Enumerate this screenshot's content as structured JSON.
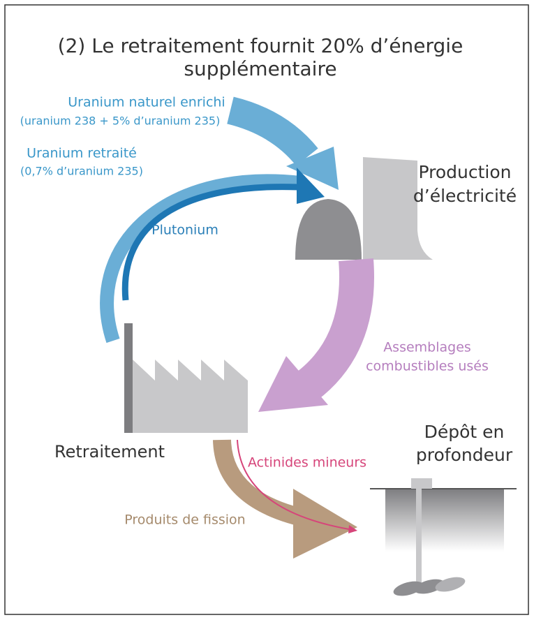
{
  "title": {
    "lines": [
      "(2) Le retraitement fournit 20% d’énergie",
      "supplémentaire"
    ]
  },
  "labels": {
    "uranium_enrichi": [
      "Uranium naturel enrichi",
      "(uranium 238 + 5% d’uranium 235)"
    ],
    "uranium_retraite": [
      "Uranium retraité",
      "(0,7% d’uranium 235)"
    ],
    "plutonium": "Plutonium",
    "production": [
      "Production",
      "d’électricité"
    ],
    "assemblages": [
      "Assemblages",
      "combustibles usés"
    ],
    "retraitement": "Retraitement",
    "actinides": "Actinides mineurs",
    "produits": "Produits de fission",
    "depot": [
      "Dépôt en",
      "profondeur"
    ]
  }
}
